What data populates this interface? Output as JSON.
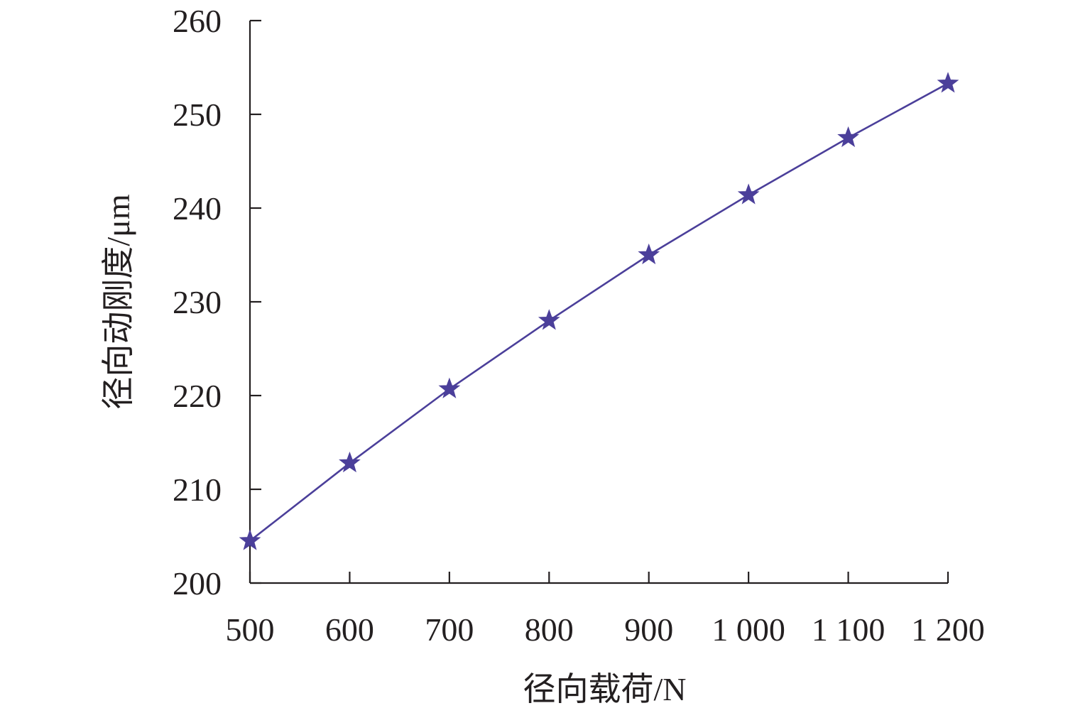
{
  "chart_data": {
    "type": "line",
    "title": "",
    "xlabel": "径向载荷/N",
    "ylabel": "径向动刚度/μm",
    "x": [
      500,
      600,
      700,
      800,
      900,
      1000,
      1100,
      1200
    ],
    "x_tick_labels": [
      "500",
      "600",
      "700",
      "800",
      "900",
      "1 000",
      "1 100",
      "1 200"
    ],
    "xlim": [
      500,
      1200
    ],
    "y_ticks": [
      200,
      210,
      220,
      230,
      240,
      250,
      260
    ],
    "y_tick_labels": [
      "200",
      "210",
      "220",
      "230",
      "240",
      "250",
      "260"
    ],
    "ylim": [
      200,
      260
    ],
    "grid": false,
    "legend": "none",
    "series": [
      {
        "values": [
          204.5,
          212.8,
          220.7,
          228.0,
          235.0,
          241.4,
          247.5,
          253.3
        ],
        "color": "#4b3f9a",
        "marker": "star"
      }
    ]
  }
}
